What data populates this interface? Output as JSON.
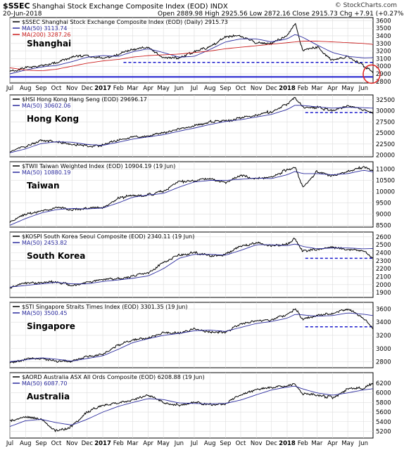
{
  "header": {
    "symbol": "$SSEC",
    "title": "Shanghai Stock Exchange Composite Index (EOD) INDX",
    "date": "20-Jun-2018",
    "ohlc": "Open 2889.98  High 2925.56  Low 2872.16  Close 2915.73  Chg +7.91 (+0.27%) ▴",
    "brand": "© StockCharts.com"
  },
  "x_axis": {
    "ticks": [
      "Jul",
      "Aug",
      "Sep",
      "Oct",
      "Nov",
      "Dec",
      "2017",
      "Feb",
      "Mar",
      "Apr",
      "May",
      "Jun",
      "Jul",
      "Aug",
      "Sep",
      "Oct",
      "Nov",
      "Dec",
      "2018",
      "Feb",
      "Mar",
      "Apr",
      "May",
      "Jun"
    ],
    "tick_days": [
      0,
      31,
      62,
      92,
      123,
      153,
      184,
      215,
      243,
      274,
      304,
      335,
      365,
      396,
      427,
      457,
      488,
      518,
      549,
      580,
      608,
      639,
      669,
      700
    ],
    "end_day": 719
  },
  "colors": {
    "price": "#000000",
    "ma50": "#2b2b9e",
    "ma200": "#cc1f1f",
    "support": "#1a1acc",
    "highlight": "#e02020",
    "grid": "#dddddd"
  },
  "chart_data": [
    {
      "type": "line",
      "panel_label": "Shanghai",
      "legend": [
        "$SSEC Shanghai Stock Exchange Composite Index (EOD) (Daily) 2915.73",
        "MA(50) 3113.74",
        "MA(200) 3287.26"
      ],
      "yticks": [
        2800,
        2900,
        3000,
        3100,
        3200,
        3300,
        3400,
        3500,
        3600
      ],
      "ylim": [
        2780,
        3640
      ],
      "x_days": [
        0,
        31,
        62,
        92,
        123,
        153,
        184,
        215,
        243,
        274,
        304,
        335,
        365,
        396,
        427,
        457,
        488,
        518,
        549,
        565,
        580,
        608,
        639,
        669,
        700,
        719
      ],
      "series": [
        {
          "name": "$SSEC",
          "values": [
            2932,
            2975,
            3005,
            3040,
            3120,
            3150,
            3100,
            3155,
            3220,
            3250,
            3100,
            3110,
            3190,
            3260,
            3380,
            3400,
            3310,
            3300,
            3410,
            3560,
            3200,
            3250,
            3080,
            3130,
            3010,
            2915
          ]
        },
        {
          "name": "MA(50)",
          "values": [
            2900,
            2950,
            2990,
            3010,
            3060,
            3120,
            3140,
            3130,
            3190,
            3230,
            3180,
            3120,
            3130,
            3220,
            3320,
            3360,
            3360,
            3320,
            3360,
            3420,
            3380,
            3280,
            3180,
            3130,
            3110,
            3113
          ]
        },
        {
          "name": "MA(200)",
          "values": [
            2980,
            2950,
            2940,
            2960,
            3000,
            3040,
            3070,
            3090,
            3120,
            3140,
            3150,
            3160,
            3180,
            3200,
            3230,
            3250,
            3270,
            3290,
            3310,
            3320,
            3330,
            3330,
            3320,
            3310,
            3300,
            3287
          ]
        }
      ],
      "support_levels": [
        3050,
        2860
      ]
    },
    {
      "type": "line",
      "panel_label": "Hong Kong",
      "legend": [
        "$HSI Hong Kong Hang Seng (EOD) 29696.17",
        "MA(50) 30602.06"
      ],
      "yticks": [
        20000,
        22500,
        25000,
        27500,
        30000,
        32500
      ],
      "ylim": [
        19600,
        33600
      ],
      "x_days": [
        0,
        31,
        62,
        92,
        123,
        153,
        184,
        215,
        243,
        274,
        304,
        335,
        365,
        396,
        427,
        457,
        488,
        518,
        549,
        565,
        580,
        608,
        639,
        669,
        700,
        719
      ],
      "series": [
        {
          "name": "$HSI",
          "values": [
            20800,
            22000,
            23400,
            23000,
            22500,
            22000,
            22200,
            23500,
            24000,
            24300,
            25000,
            25800,
            26600,
            27500,
            27700,
            28300,
            29000,
            29900,
            31500,
            33000,
            30800,
            30800,
            30000,
            31000,
            30300,
            29696
          ]
        },
        {
          "name": "MA(50)",
          "values": [
            20500,
            21400,
            22600,
            23000,
            22900,
            22400,
            22200,
            22900,
            23600,
            24100,
            24600,
            25400,
            26100,
            26900,
            27600,
            28000,
            28600,
            29200,
            30300,
            31300,
            31200,
            30900,
            30600,
            30800,
            30700,
            30602
          ]
        }
      ],
      "support_levels": [
        29600
      ]
    },
    {
      "type": "line",
      "panel_label": "Taiwan",
      "legend": [
        "$TWII Taiwan Weighted Index (EOD) 10904.19 (19 Jun)",
        "MA(50) 10880.19"
      ],
      "yticks": [
        8500,
        9000,
        9500,
        10000,
        10500,
        11000
      ],
      "ylim": [
        8420,
        11330
      ],
      "x_days": [
        0,
        31,
        62,
        92,
        123,
        153,
        184,
        215,
        243,
        274,
        304,
        335,
        365,
        396,
        427,
        457,
        488,
        518,
        549,
        565,
        580,
        608,
        639,
        669,
        700,
        719
      ],
      "series": [
        {
          "name": "$TWII",
          "values": [
            8650,
            9000,
            9150,
            9300,
            9200,
            9250,
            9300,
            9700,
            9850,
            9850,
            10000,
            10450,
            10500,
            10550,
            10400,
            10700,
            10600,
            10600,
            11000,
            11100,
            10200,
            10900,
            10700,
            10900,
            11100,
            10904
          ]
        },
        {
          "name": "MA(50)",
          "values": [
            8500,
            8800,
            9050,
            9200,
            9250,
            9230,
            9270,
            9500,
            9750,
            9850,
            9920,
            10200,
            10430,
            10500,
            10500,
            10550,
            10600,
            10580,
            10750,
            10900,
            10800,
            10800,
            10750,
            10800,
            10950,
            10880
          ]
        }
      ]
    },
    {
      "type": "line",
      "panel_label": "South Korea",
      "legend": [
        "$KOSPI South Korea Seoul Composite (EOD) 2340.11 (19 Jun)",
        "MA(50) 2453.82"
      ],
      "yticks": [
        1900,
        2000,
        2100,
        2200,
        2300,
        2400,
        2500,
        2600
      ],
      "ylim": [
        1840,
        2660
      ],
      "x_days": [
        0,
        31,
        62,
        92,
        123,
        153,
        184,
        215,
        243,
        274,
        304,
        335,
        365,
        396,
        427,
        457,
        488,
        518,
        549,
        565,
        580,
        608,
        639,
        669,
        700,
        719
      ],
      "series": [
        {
          "name": "$KOSPI",
          "values": [
            1960,
            2020,
            2030,
            2040,
            1990,
            2030,
            2060,
            2080,
            2100,
            2150,
            2280,
            2370,
            2400,
            2370,
            2380,
            2480,
            2530,
            2480,
            2510,
            2580,
            2420,
            2440,
            2470,
            2450,
            2420,
            2340
          ]
        },
        {
          "name": "MA(50)",
          "values": [
            1970,
            1990,
            2010,
            2030,
            2010,
            2010,
            2040,
            2060,
            2080,
            2110,
            2200,
            2330,
            2380,
            2380,
            2370,
            2430,
            2500,
            2500,
            2490,
            2510,
            2480,
            2450,
            2460,
            2460,
            2450,
            2453
          ]
        }
      ],
      "support_levels": [
        2330
      ]
    },
    {
      "type": "line",
      "panel_label": "Singapore",
      "legend": [
        "$STI Singapore Straits Times Index (EOD) 3301.35 (19 Jun)",
        "MA(50) 3500.45"
      ],
      "yticks": [
        2800,
        3000,
        3200,
        3400,
        3600
      ],
      "ylim": [
        2710,
        3700
      ],
      "x_days": [
        0,
        31,
        62,
        92,
        123,
        153,
        184,
        215,
        243,
        274,
        304,
        335,
        365,
        396,
        427,
        457,
        488,
        518,
        549,
        565,
        580,
        608,
        639,
        669,
        700,
        719
      ],
      "series": [
        {
          "name": "$STI",
          "values": [
            2790,
            2840,
            2860,
            2810,
            2800,
            2880,
            2910,
            3050,
            3130,
            3170,
            3230,
            3240,
            3300,
            3260,
            3240,
            3380,
            3420,
            3430,
            3520,
            3600,
            3450,
            3500,
            3520,
            3600,
            3450,
            3301
          ]
        },
        {
          "name": "MA(50)",
          "values": [
            2800,
            2830,
            2860,
            2840,
            2810,
            2850,
            2890,
            2990,
            3090,
            3150,
            3200,
            3230,
            3270,
            3280,
            3260,
            3320,
            3380,
            3410,
            3460,
            3520,
            3510,
            3490,
            3500,
            3540,
            3520,
            3500
          ]
        }
      ],
      "support_levels": [
        3330
      ]
    },
    {
      "type": "line",
      "panel_label": "Australia",
      "legend": [
        "$AORD Australia ASX All Ords Composite (EOD) 6208.88 (19 Jun)",
        "MA(50) 6087.70"
      ],
      "yticks": [
        5200,
        5400,
        5600,
        5800,
        6000,
        6200
      ],
      "ylim": [
        5060,
        6420
      ],
      "x_days": [
        0,
        31,
        62,
        92,
        123,
        153,
        184,
        215,
        243,
        274,
        304,
        335,
        365,
        396,
        427,
        457,
        488,
        518,
        549,
        565,
        580,
        608,
        639,
        669,
        700,
        719
      ],
      "series": [
        {
          "name": "$AORD",
          "values": [
            5400,
            5500,
            5450,
            5200,
            5300,
            5600,
            5750,
            5780,
            5850,
            5960,
            5800,
            5750,
            5800,
            5760,
            5780,
            5950,
            6080,
            6100,
            6150,
            6180,
            5980,
            5950,
            5900,
            6080,
            6100,
            6208
          ]
        },
        {
          "name": "MA(50)",
          "values": [
            5300,
            5420,
            5450,
            5380,
            5330,
            5450,
            5600,
            5720,
            5800,
            5880,
            5860,
            5790,
            5780,
            5770,
            5780,
            5850,
            5960,
            6060,
            6120,
            6140,
            6080,
            6000,
            5950,
            6000,
            6060,
            6087
          ]
        }
      ]
    }
  ]
}
